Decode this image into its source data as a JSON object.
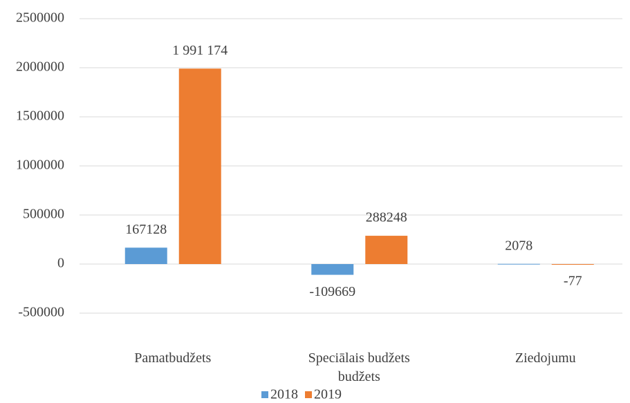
{
  "chart_data": {
    "type": "bar",
    "categories": [
      "Pamatbudžets",
      "Speciālais budžets budžets",
      "Ziedojumu"
    ],
    "series": [
      {
        "name": "2018",
        "color": "#5b9bd5",
        "values": [
          167128,
          -109669,
          2078
        ]
      },
      {
        "name": "2019",
        "color": "#ed7d31",
        "values": [
          1991174,
          288248,
          -77
        ],
        "value_labels": [
          "1 991 174",
          "288248",
          "-77"
        ]
      }
    ],
    "ylim": [
      -500000,
      2500000
    ],
    "yticks": [
      -500000,
      0,
      500000,
      1000000,
      1500000,
      2000000,
      2500000
    ],
    "grid": true,
    "legend": "bottom"
  }
}
